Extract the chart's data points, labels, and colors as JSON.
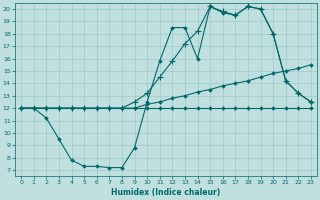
{
  "bg_color": "#c0e0e0",
  "grid_color": "#a0c8c8",
  "line_color": "#006868",
  "xlabel": "Humidex (Indice chaleur)",
  "xlim": [
    -0.5,
    23.5
  ],
  "ylim": [
    6.5,
    20.5
  ],
  "yticks": [
    7,
    8,
    9,
    10,
    11,
    12,
    13,
    14,
    15,
    16,
    17,
    18,
    19,
    20
  ],
  "xticks": [
    0,
    1,
    2,
    3,
    4,
    5,
    6,
    7,
    8,
    9,
    10,
    11,
    12,
    13,
    14,
    15,
    16,
    17,
    18,
    19,
    20,
    21,
    22,
    23
  ],
  "line1_x": [
    0,
    1,
    2,
    3,
    4,
    5,
    6,
    7,
    8,
    9,
    10,
    11,
    12,
    13,
    14,
    15,
    16,
    17,
    18,
    19,
    20,
    21,
    22,
    23
  ],
  "line1_y": [
    12,
    12,
    12,
    12,
    12,
    12,
    12,
    12,
    12,
    12,
    12,
    12,
    12,
    12,
    12,
    12,
    12,
    12,
    12,
    12,
    12,
    12,
    12,
    12
  ],
  "line2_x": [
    0,
    1,
    2,
    3,
    4,
    5,
    6,
    7,
    8,
    9,
    10,
    11,
    12,
    13,
    14,
    15,
    16,
    17,
    18,
    19,
    20,
    21,
    22,
    23
  ],
  "line2_y": [
    12,
    12,
    12,
    12,
    12,
    12,
    12,
    12,
    12,
    12,
    12.3,
    12.5,
    12.8,
    13.0,
    13.3,
    13.5,
    13.8,
    14.0,
    14.2,
    14.5,
    14.8,
    15.0,
    15.2,
    15.5
  ],
  "line3_x": [
    0,
    1,
    2,
    3,
    4,
    5,
    6,
    7,
    8,
    9,
    10,
    11,
    12,
    13,
    14,
    15,
    16,
    17,
    18,
    19,
    20,
    21,
    22,
    23
  ],
  "line3_y": [
    12,
    12,
    11.2,
    9.5,
    7.8,
    7.3,
    7.3,
    7.2,
    7.2,
    8.8,
    12.5,
    15.8,
    18.5,
    18.5,
    16.0,
    20.2,
    19.7,
    19.5,
    20.2,
    20.0,
    18.0,
    14.2,
    13.2,
    12.5
  ],
  "line4_x": [
    0,
    1,
    2,
    3,
    4,
    5,
    6,
    7,
    8,
    9,
    10,
    11,
    12,
    13,
    14,
    15,
    16,
    17,
    18,
    19,
    20,
    21,
    22,
    23
  ],
  "line4_y": [
    12,
    12,
    12,
    12,
    12,
    12,
    12,
    12,
    12,
    12.5,
    13.2,
    14.5,
    15.8,
    17.2,
    18.2,
    20.2,
    19.8,
    19.5,
    20.2,
    20.0,
    18.0,
    14.2,
    13.2,
    12.5
  ]
}
